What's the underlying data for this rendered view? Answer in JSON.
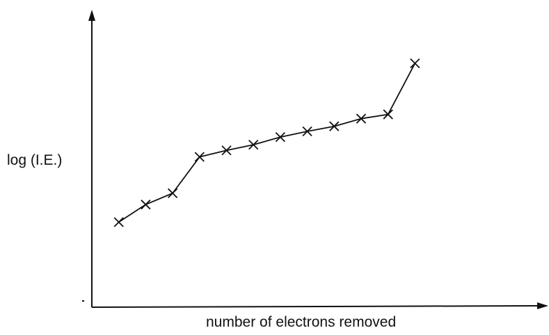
{
  "chart_data": {
    "type": "line",
    "title": "",
    "xlabel": "number of electrons removed",
    "ylabel": "log (I.E.)",
    "marker": "x",
    "line_color": "#111111",
    "x": [
      1,
      2,
      3,
      4,
      5,
      6,
      7,
      8,
      9,
      10,
      11,
      12
    ],
    "series": [
      {
        "values": [
          3.0,
          3.62,
          4.02,
          5.3,
          5.53,
          5.73,
          6.0,
          6.2,
          6.38,
          6.65,
          6.8,
          8.6
        ]
      }
    ],
    "xlim": [
      0,
      15.5
    ],
    "ylim": [
      0,
      10
    ],
    "grid": false,
    "legend": "none",
    "axes": "arrows, no ticks"
  }
}
